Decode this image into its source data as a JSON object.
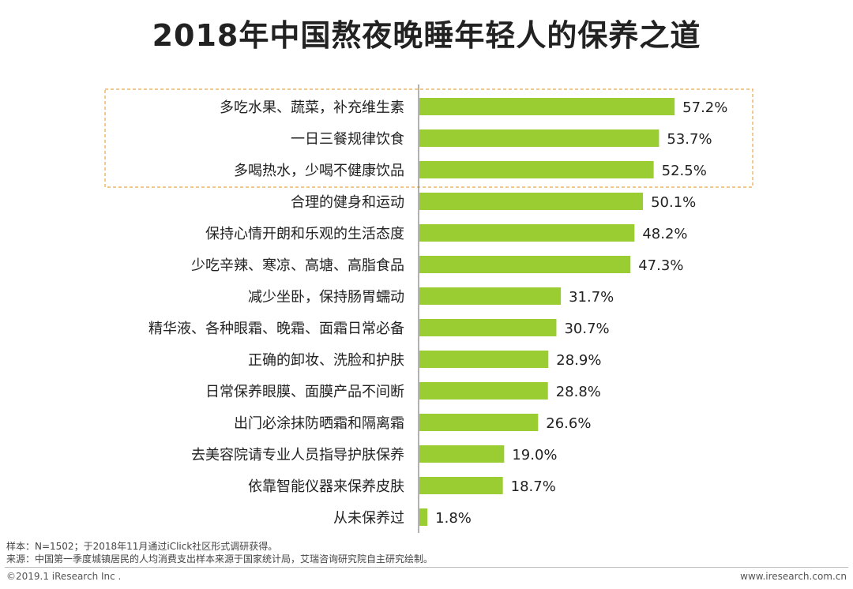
{
  "title": "2018年中国熬夜晚睡年轻人的保养之道",
  "colors": {
    "bar": "#9acd32",
    "highlight_border": "#e8a94a",
    "axis": "#7f7f7f"
  },
  "chart_data": {
    "type": "bar",
    "orientation": "horizontal",
    "title": "2018年中国熬夜晚睡年轻人的保养之道",
    "unit": "%",
    "categories": [
      "多吃水果、蔬菜，补充维生素",
      "一日三餐规律饮食",
      "多喝热水，少喝不健康饮品",
      "合理的健身和运动",
      "保持心情开朗和乐观的生活态度",
      "少吃辛辣、寒凉、高塘、高脂食品",
      "减少坐卧，保持肠胃蠕动",
      "精华液、各种眼霜、晚霜、面霜日常必备",
      "正确的卸妆、洗脸和护肤",
      "日常保养眼膜、面膜产品不间断",
      "出门必涂抹防晒霜和隔离霜",
      "去美容院请专业人员指导护肤保养",
      "依靠智能仪器来保养皮肤",
      "从未保养过"
    ],
    "values": [
      57.2,
      53.7,
      52.5,
      50.1,
      48.2,
      47.3,
      31.7,
      30.7,
      28.9,
      28.8,
      26.6,
      19.0,
      18.7,
      1.8
    ],
    "value_labels": [
      "57.2%",
      "53.7%",
      "52.5%",
      "50.1%",
      "48.2%",
      "47.3%",
      "31.7%",
      "30.7%",
      "28.9%",
      "28.8%",
      "26.6%",
      "19.0%",
      "18.7%",
      "1.8%"
    ],
    "highlighted_top_n": 3,
    "xlim": [
      0,
      100
    ]
  },
  "footnotes": {
    "sample": "样本：N=1502；于2018年11月通过iClick社区形式调研获得。",
    "source": "来源：中国第一季度城镇居民的人均消费支出样本来源于国家统计局，艾瑞咨询研究院自主研究绘制。"
  },
  "footer": {
    "copyright": "©2019.1 iResearch Inc .",
    "website": "www.iresearch.com.cn"
  }
}
